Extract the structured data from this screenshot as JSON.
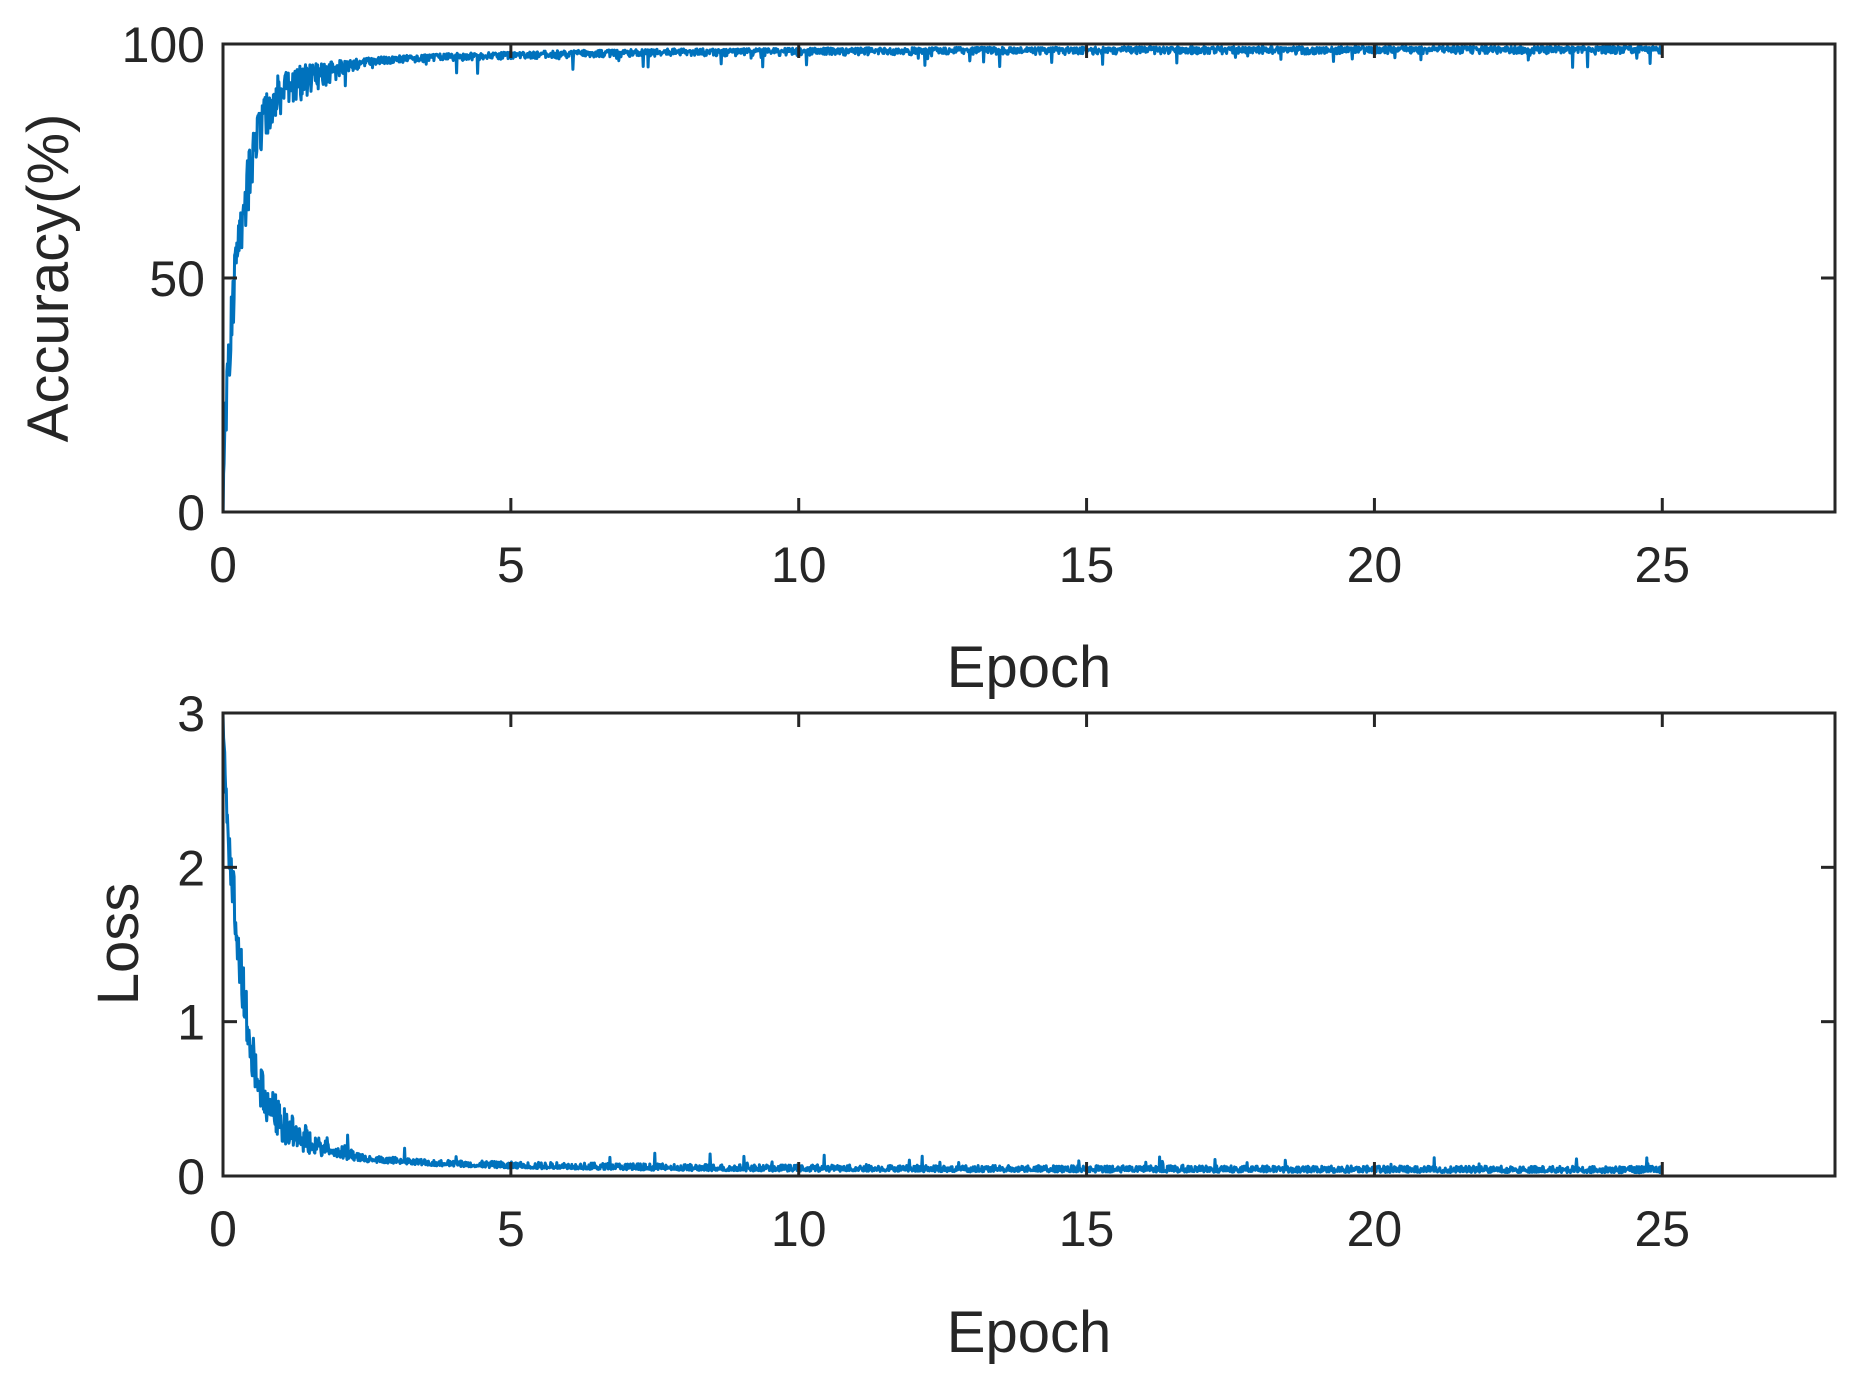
{
  "colors": {
    "series": "#0072BD",
    "axis": "#262626",
    "background": "#ffffff"
  },
  "chart_data": [
    {
      "type": "line",
      "title": "",
      "xlabel": "Epoch",
      "ylabel": "Accuracy(%)",
      "xlim": [
        0,
        28
      ],
      "ylim": [
        0,
        100
      ],
      "xticks": [
        0,
        5,
        10,
        15,
        20,
        25
      ],
      "yticks": [
        0,
        50,
        100
      ],
      "grid": false,
      "legend": "none",
      "series": [
        {
          "x": [
            0,
            0.05,
            0.1,
            0.2,
            0.3,
            0.4,
            0.5,
            0.6,
            0.8,
            1.0,
            1.5,
            2,
            2.5,
            3,
            4,
            5,
            6,
            7,
            8,
            9,
            10,
            11,
            12,
            13,
            14,
            15,
            16,
            17,
            18,
            19,
            20,
            21,
            22,
            23,
            24,
            25
          ],
          "y": [
            10,
            25,
            40,
            55,
            65,
            74,
            80,
            85,
            91,
            94,
            96,
            96.5,
            97,
            97.5,
            98,
            98.3,
            98.6,
            98.8,
            99,
            99,
            99.1,
            99.2,
            99.2,
            99.3,
            99.3,
            99.3,
            99.4,
            99.4,
            99.4,
            99.4,
            99.5,
            99.5,
            99.5,
            99.5,
            99.5,
            99.5
          ]
        }
      ]
    },
    {
      "type": "line",
      "title": "",
      "xlabel": "Epoch",
      "ylabel": "Loss",
      "xlim": [
        0,
        28
      ],
      "ylim": [
        0,
        3
      ],
      "xticks": [
        0,
        5,
        10,
        15,
        20,
        25
      ],
      "yticks": [
        0,
        1,
        2,
        3
      ],
      "grid": false,
      "legend": "none",
      "series": [
        {
          "x": [
            0,
            0.05,
            0.1,
            0.2,
            0.3,
            0.4,
            0.5,
            0.6,
            0.8,
            1.0,
            1.5,
            2,
            2.5,
            3,
            4,
            5,
            6,
            7,
            8,
            9,
            10,
            11,
            12,
            13,
            14,
            15,
            16,
            17,
            18,
            19,
            20,
            21,
            22,
            23,
            24,
            25
          ],
          "y": [
            2.9,
            2.4,
            2.0,
            1.6,
            1.2,
            0.9,
            0.65,
            0.5,
            0.32,
            0.22,
            0.14,
            0.11,
            0.09,
            0.08,
            0.06,
            0.05,
            0.045,
            0.04,
            0.035,
            0.033,
            0.03,
            0.03,
            0.028,
            0.027,
            0.026,
            0.025,
            0.025,
            0.024,
            0.024,
            0.023,
            0.023,
            0.022,
            0.022,
            0.022,
            0.021,
            0.021
          ]
        }
      ]
    }
  ]
}
